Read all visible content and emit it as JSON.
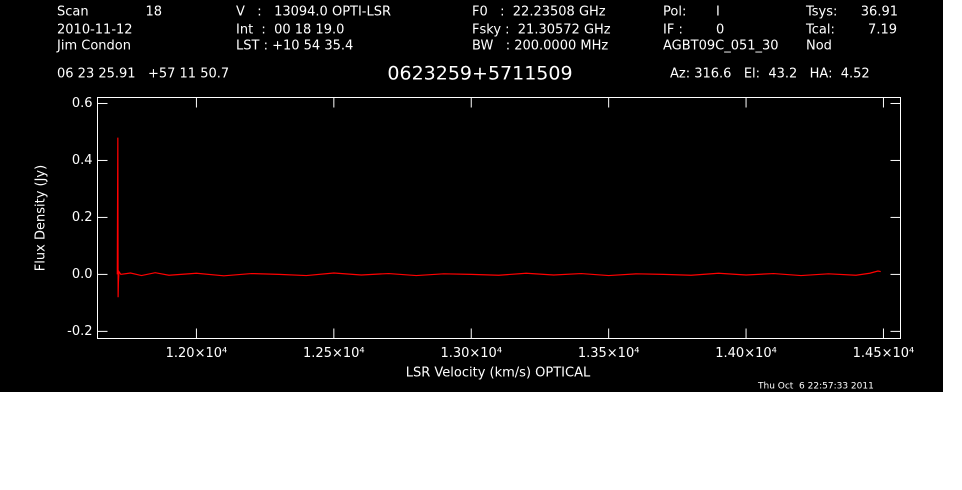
{
  "chart_data": {
    "type": "line",
    "title": "0623259+5711509",
    "header": [
      "Scan",
      "18",
      "2010-11-12",
      "Jim Condon",
      "V   :   13094.0 OPTI-LSR",
      "Int  :  00 18 19.0",
      "LST : +10 54 35.4",
      "F0   :  22.23508 GHz",
      "Fsky :  21.30572 GHz",
      "BW   : 200.0000 MHz",
      "Pol:",
      "I",
      "IF :",
      "0",
      "AGBT09C_051_30",
      "Tsys:",
      "36.91",
      "Tcal:",
      "7.19",
      "Nod",
      "06 23 25.91   +57 11 50.7",
      "Az: 316.6   El:  43.2   HA:  4.52"
    ],
    "x_label": "LSR Velocity (km/s) OPTICAL",
    "y_label": "Flux Density (Jy)",
    "timestamp": "Thu Oct  6 22:57:33 2011",
    "xlim": [
      11640,
      14562
    ],
    "ylim": [
      -0.225,
      0.621
    ],
    "xticks": [
      {
        "value": 12000,
        "label": "1.20×10⁴"
      },
      {
        "value": 12500,
        "label": "1.25×10⁴"
      },
      {
        "value": 13000,
        "label": "1.30×10⁴"
      },
      {
        "value": 13500,
        "label": "1.35×10⁴"
      },
      {
        "value": 14000,
        "label": "1.40×10⁴"
      },
      {
        "value": 14500,
        "label": "1.45×10⁴"
      }
    ],
    "yticks": [
      -0.2,
      {
        "value": 0,
        "label": "0.0"
      },
      0.2,
      0.4,
      0.6
    ],
    "series": [
      {
        "color": "#ff0000",
        "x": [
          11712,
          11713,
          11714,
          11715,
          11716,
          11718,
          11725,
          11760,
          11800,
          11850,
          11900,
          12000,
          12100,
          12200,
          12300,
          12400,
          12500,
          12600,
          12700,
          12800,
          12900,
          13000,
          13100,
          13200,
          13300,
          13400,
          13500,
          13600,
          13700,
          13800,
          13900,
          14000,
          14100,
          14200,
          14300,
          14400,
          14450,
          14480,
          14490
        ],
        "values": [
          0.0,
          0.25,
          0.48,
          -0.08,
          -0.03,
          0.01,
          0.0,
          0.005,
          -0.004,
          0.006,
          -0.003,
          0.004,
          -0.005,
          0.003,
          0.0,
          -0.004,
          0.005,
          -0.002,
          0.003,
          -0.004,
          0.002,
          0.0,
          -0.003,
          0.004,
          -0.002,
          0.003,
          -0.004,
          0.002,
          0.0,
          -0.003,
          0.004,
          -0.002,
          0.003,
          -0.004,
          0.002,
          -0.003,
          0.004,
          0.012,
          0.01
        ]
      }
    ]
  }
}
